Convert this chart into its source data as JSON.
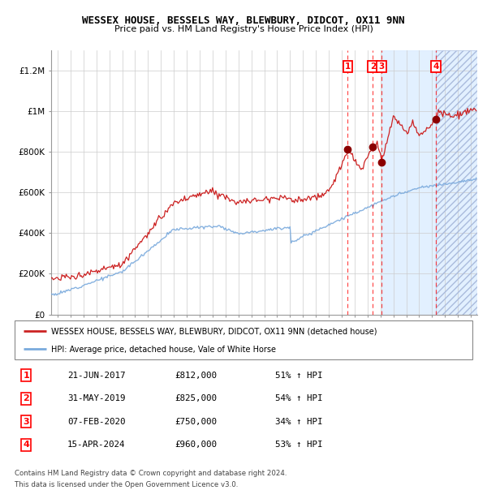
{
  "title": "WESSEX HOUSE, BESSELS WAY, BLEWBURY, DIDCOT, OX11 9NN",
  "subtitle": "Price paid vs. HM Land Registry's House Price Index (HPI)",
  "hpi_color": "#7aaadd",
  "price_color": "#cc2222",
  "dot_color": "#8b0000",
  "background_color": "#ffffff",
  "grid_color": "#cccccc",
  "transactions": [
    {
      "num": 1,
      "date": "21-JUN-2017",
      "price": 812000,
      "year": 2017.47,
      "pct": "51%"
    },
    {
      "num": 2,
      "date": "31-MAY-2019",
      "price": 825000,
      "year": 2019.41,
      "pct": "54%"
    },
    {
      "num": 3,
      "date": "07-FEB-2020",
      "price": 750000,
      "year": 2020.1,
      "pct": "34%"
    },
    {
      "num": 4,
      "date": "15-APR-2024",
      "price": 960000,
      "year": 2024.29,
      "pct": "53%"
    }
  ],
  "xlim": [
    1994.5,
    2027.5
  ],
  "ylim": [
    0,
    1300000
  ],
  "yticks": [
    0,
    200000,
    400000,
    600000,
    800000,
    1000000,
    1200000
  ],
  "ytick_labels": [
    "£0",
    "£200K",
    "£400K",
    "£600K",
    "£800K",
    "£1M",
    "£1.2M"
  ],
  "xticks": [
    1995,
    1996,
    1997,
    1998,
    1999,
    2000,
    2001,
    2002,
    2003,
    2004,
    2005,
    2006,
    2007,
    2008,
    2009,
    2010,
    2011,
    2012,
    2013,
    2014,
    2015,
    2016,
    2017,
    2018,
    2019,
    2020,
    2021,
    2022,
    2023,
    2024,
    2025,
    2026,
    2027
  ],
  "legend_line1": "WESSEX HOUSE, BESSELS WAY, BLEWBURY, DIDCOT, OX11 9NN (detached house)",
  "legend_line2": "HPI: Average price, detached house, Vale of White Horse",
  "footer_line1": "Contains HM Land Registry data © Crown copyright and database right 2024.",
  "footer_line2": "This data is licensed under the Open Government Licence v3.0.",
  "shaded_start": 2020.1,
  "shaded_end": 2027.5,
  "hatch_start": 2024.29,
  "hatch_end": 2027.5
}
